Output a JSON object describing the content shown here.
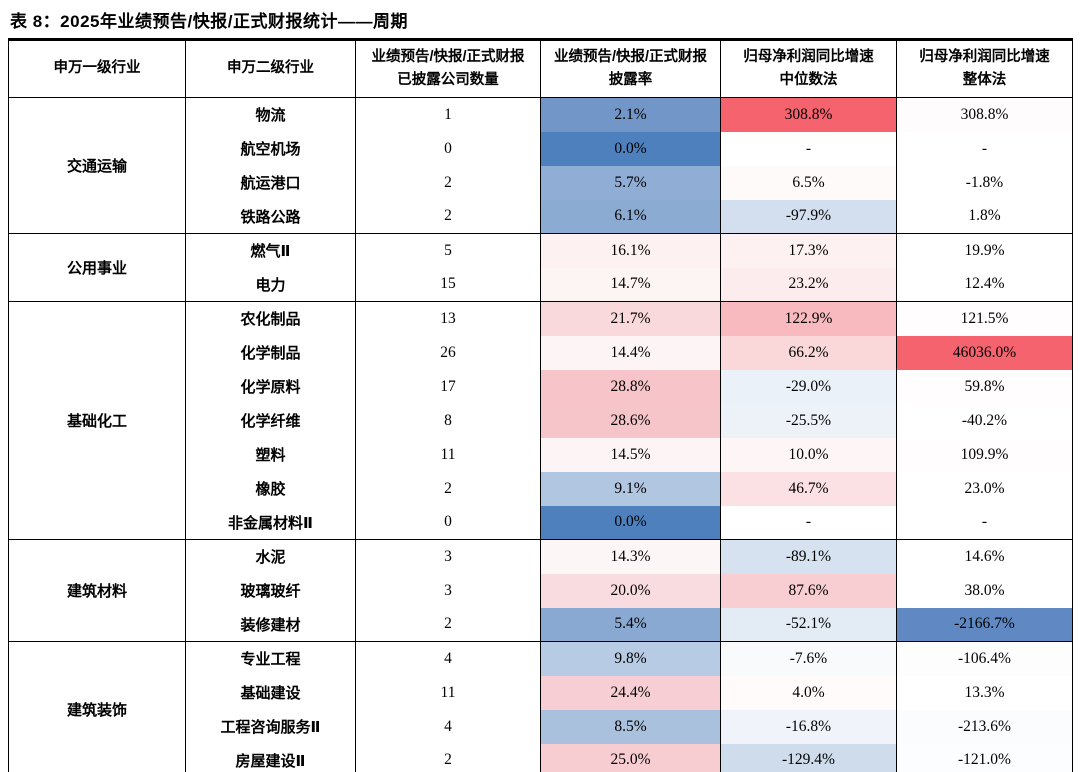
{
  "title": "表 8：2025年业绩预告/快报/正式财报统计——周期",
  "table": {
    "headers": {
      "col1": "申万一级行业",
      "col2": "申万二级行业",
      "col3_line1": "业绩预告/快报/正式财报",
      "col3_line2": "已披露公司数量",
      "col4_line1": "业绩预告/快报/正式财报",
      "col4_line2": "披露率",
      "col5_line1": "归母净利润同比增速",
      "col5_line2": "中位数法",
      "col6_line1": "归母净利润同比增速",
      "col6_line2": "整体法"
    },
    "heat_colors": {
      "strong_red": "#f4636e",
      "strong_blue": "#4d80bd",
      "white": "#ffffff"
    },
    "groups": [
      {
        "industry": "交通运输",
        "rows": [
          {
            "sub": "物流",
            "count": "1",
            "rate": {
              "text": "2.1%",
              "bg": "#7396c9"
            },
            "median": {
              "text": "308.8%",
              "bg": "#f4636e"
            },
            "overall": {
              "text": "308.8%",
              "bg": "#fefcfc"
            }
          },
          {
            "sub": "航空机场",
            "count": "0",
            "rate": {
              "text": "0.0%",
              "bg": "#4d80bd"
            },
            "median": {
              "text": "-",
              "bg": "#ffffff"
            },
            "overall": {
              "text": "-",
              "bg": "#ffffff"
            }
          },
          {
            "sub": "航运港口",
            "count": "2",
            "rate": {
              "text": "5.7%",
              "bg": "#8fadd5"
            },
            "median": {
              "text": "6.5%",
              "bg": "#fefafa"
            },
            "overall": {
              "text": "-1.8%",
              "bg": "#ffffff"
            }
          },
          {
            "sub": "铁路公路",
            "count": "2",
            "rate": {
              "text": "6.1%",
              "bg": "#8cabd3"
            },
            "median": {
              "text": "-97.9%",
              "bg": "#d3dfee"
            },
            "overall": {
              "text": "1.8%",
              "bg": "#ffffff"
            }
          }
        ]
      },
      {
        "industry": "公用事业",
        "rows": [
          {
            "sub": "燃气Ⅱ",
            "count": "5",
            "rate": {
              "text": "16.1%",
              "bg": "#fdf1f1"
            },
            "median": {
              "text": "17.3%",
              "bg": "#fdf1f1"
            },
            "overall": {
              "text": "19.9%",
              "bg": "#ffffff"
            }
          },
          {
            "sub": "电力",
            "count": "15",
            "rate": {
              "text": "14.7%",
              "bg": "#fdf4f4"
            },
            "median": {
              "text": "23.2%",
              "bg": "#fcecee"
            },
            "overall": {
              "text": "12.4%",
              "bg": "#ffffff"
            }
          }
        ]
      },
      {
        "industry": "基础化工",
        "rows": [
          {
            "sub": "农化制品",
            "count": "13",
            "rate": {
              "text": "21.7%",
              "bg": "#f9d9db"
            },
            "median": {
              "text": "122.9%",
              "bg": "#f9babf"
            },
            "overall": {
              "text": "121.5%",
              "bg": "#fffdfd"
            }
          },
          {
            "sub": "化学制品",
            "count": "26",
            "rate": {
              "text": "14.4%",
              "bg": "#fdf5f5"
            },
            "median": {
              "text": "66.2%",
              "bg": "#fad8da"
            },
            "overall": {
              "text": "46036.0%",
              "bg": "#f4636e"
            }
          },
          {
            "sub": "化学原料",
            "count": "17",
            "rate": {
              "text": "28.8%",
              "bg": "#f6c4c9"
            },
            "median": {
              "text": "-29.0%",
              "bg": "#ebf1f8"
            },
            "overall": {
              "text": "59.8%",
              "bg": "#fffdfd"
            }
          },
          {
            "sub": "化学纤维",
            "count": "8",
            "rate": {
              "text": "28.6%",
              "bg": "#f6c5ca"
            },
            "median": {
              "text": "-25.5%",
              "bg": "#ecf2f8"
            },
            "overall": {
              "text": "-40.2%",
              "bg": "#ffffff"
            }
          },
          {
            "sub": "塑料",
            "count": "11",
            "rate": {
              "text": "14.5%",
              "bg": "#fdf5f5"
            },
            "median": {
              "text": "10.0%",
              "bg": "#fef6f6"
            },
            "overall": {
              "text": "109.9%",
              "bg": "#fffdfd"
            }
          },
          {
            "sub": "橡胶",
            "count": "2",
            "rate": {
              "text": "9.1%",
              "bg": "#b0c6e1"
            },
            "median": {
              "text": "46.7%",
              "bg": "#fbe1e3"
            },
            "overall": {
              "text": "23.0%",
              "bg": "#ffffff"
            }
          },
          {
            "sub": "非金属材料Ⅱ",
            "count": "0",
            "rate": {
              "text": "0.0%",
              "bg": "#4d80bd"
            },
            "median": {
              "text": "-",
              "bg": "#ffffff"
            },
            "overall": {
              "text": "-",
              "bg": "#ffffff"
            }
          }
        ]
      },
      {
        "industry": "建筑材料",
        "rows": [
          {
            "sub": "水泥",
            "count": "3",
            "rate": {
              "text": "14.3%",
              "bg": "#fdf6f6"
            },
            "median": {
              "text": "-89.1%",
              "bg": "#d7e2f0"
            },
            "overall": {
              "text": "14.6%",
              "bg": "#ffffff"
            }
          },
          {
            "sub": "玻璃玻纤",
            "count": "3",
            "rate": {
              "text": "20.0%",
              "bg": "#f9dcdf"
            },
            "median": {
              "text": "87.6%",
              "bg": "#f9ced2"
            },
            "overall": {
              "text": "38.0%",
              "bg": "#ffffff"
            }
          },
          {
            "sub": "装修建材",
            "count": "2",
            "rate": {
              "text": "5.4%",
              "bg": "#8aa9d2"
            },
            "median": {
              "text": "-52.1%",
              "bg": "#e3ebf5"
            },
            "overall": {
              "text": "-2166.7%",
              "bg": "#6089c4"
            }
          }
        ]
      },
      {
        "industry": "建筑装饰",
        "rows": [
          {
            "sub": "专业工程",
            "count": "4",
            "rate": {
              "text": "9.8%",
              "bg": "#b7cbe4"
            },
            "median": {
              "text": "-7.6%",
              "bg": "#f8fafc"
            },
            "overall": {
              "text": "-106.4%",
              "bg": "#fdfdfe"
            }
          },
          {
            "sub": "基础建设",
            "count": "11",
            "rate": {
              "text": "24.4%",
              "bg": "#f7ced3"
            },
            "median": {
              "text": "4.0%",
              "bg": "#fffbfb"
            },
            "overall": {
              "text": "13.3%",
              "bg": "#ffffff"
            }
          },
          {
            "sub": "工程咨询服务Ⅱ",
            "count": "4",
            "rate": {
              "text": "8.5%",
              "bg": "#aac1de"
            },
            "median": {
              "text": "-16.8%",
              "bg": "#f0f4fa"
            },
            "overall": {
              "text": "-213.6%",
              "bg": "#fbfcfe"
            }
          },
          {
            "sub": "房屋建设Ⅱ",
            "count": "2",
            "rate": {
              "text": "25.0%",
              "bg": "#f7cdd2"
            },
            "median": {
              "text": "-129.4%",
              "bg": "#cedceb"
            },
            "overall": {
              "text": "-121.0%",
              "bg": "#fcfdfe"
            }
          }
        ]
      }
    ]
  }
}
